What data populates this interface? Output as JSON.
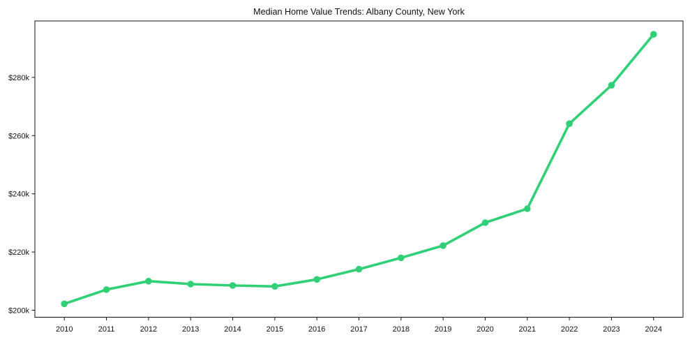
{
  "window": {
    "background_color": "#ffffff"
  },
  "chart_data": {
    "type": "line",
    "title": "Median Home Value Trends: Albany County, New York",
    "xlabel": "",
    "ylabel": "",
    "unit": "USD thousands",
    "categories": [
      2010,
      2011,
      2012,
      2013,
      2014,
      2015,
      2016,
      2017,
      2018,
      2019,
      2020,
      2021,
      2022,
      2023,
      2024
    ],
    "series": [
      {
        "name": "Median Home Value",
        "values": [
          202.2,
          207.1,
          210.0,
          209.0,
          208.5,
          208.2,
          210.6,
          214.1,
          218.0,
          222.2,
          230.1,
          234.9,
          264.1,
          277.3,
          294.8
        ]
      }
    ],
    "yticks": [
      {
        "value": 200,
        "label": "$200k"
      },
      {
        "value": 220,
        "label": "$220k"
      },
      {
        "value": 240,
        "label": "$240k"
      },
      {
        "value": 260,
        "label": "$260k"
      },
      {
        "value": 280,
        "label": "$280k"
      }
    ],
    "ylim": [
      197.6,
      299.4
    ],
    "xlim": [
      2009.3,
      2024.7
    ],
    "grid": false,
    "legend_position": "none",
    "line_color": "#31d077",
    "marker_shape": "circle",
    "axis_color": "#111111",
    "tick_label_color": "#111111",
    "title_color": "#111111",
    "plot_background_color": "#ffffff"
  }
}
